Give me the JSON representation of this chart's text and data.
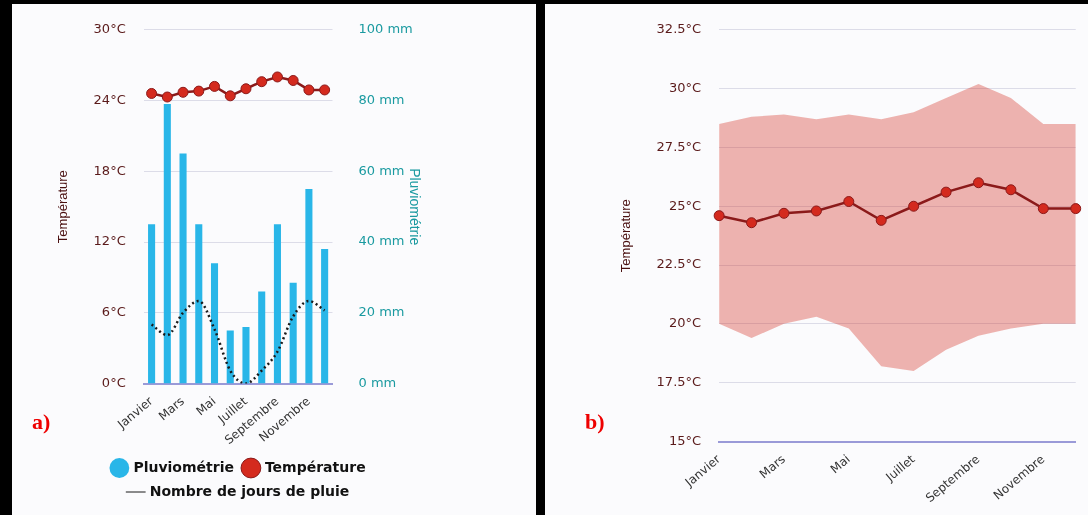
{
  "chart_data": [
    {
      "type": "bar",
      "categories": [
        "Janvier",
        null,
        "Mars",
        null,
        "Mai",
        null,
        "Juillet",
        null,
        "Septembre",
        null,
        "Novembre",
        null
      ],
      "ylabel": "Température",
      "y2label": "Pluviométrie",
      "ylim": [
        0,
        30
      ],
      "yticks": [
        {
          "value": 0,
          "label": "0°C"
        },
        {
          "value": 6,
          "label": "6°C"
        },
        {
          "value": 12,
          "label": "12°C"
        },
        {
          "value": 18,
          "label": "18°C"
        },
        {
          "value": 24,
          "label": "24°C"
        },
        {
          "value": 30,
          "label": "30°C"
        }
      ],
      "y2lim": [
        0,
        100
      ],
      "y2ticks": [
        {
          "value": 0,
          "label": "0 mm"
        },
        {
          "value": 20,
          "label": "20 mm"
        },
        {
          "value": 40,
          "label": "40 mm"
        },
        {
          "value": 60,
          "label": "60 mm"
        },
        {
          "value": 80,
          "label": "80 mm"
        },
        {
          "value": 100,
          "label": "100 mm"
        }
      ],
      "series": [
        {
          "name": "Pluviométrie",
          "type": "bar",
          "axis": "y2",
          "color": "#29b6e8",
          "values": [
            45,
            79,
            65,
            45,
            34,
            15,
            16,
            26,
            45,
            28.5,
            55,
            38
          ]
        },
        {
          "name": "Température",
          "type": "line",
          "axis": "y",
          "color": "#d42a1e",
          "marker": "circle",
          "values": [
            24.6,
            24.3,
            24.7,
            24.8,
            25.2,
            24.4,
            25.0,
            25.6,
            26.0,
            25.7,
            24.9,
            24.9
          ]
        },
        {
          "name": "Nombre de jours de pluie",
          "type": "line",
          "axis": "y",
          "color": "#1a1a1a",
          "marker": "none",
          "line_style": "dotted",
          "values": [
            5.0,
            4.1,
            6.0,
            7.0,
            4.6,
            1.1,
            0,
            1.1,
            2.7,
            5.7,
            7.0,
            6.2
          ]
        }
      ],
      "grid": "y",
      "legend": "bottom",
      "annotations": [
        "a)"
      ]
    },
    {
      "type": "line",
      "categories": [
        "Janvier",
        null,
        "Mars",
        null,
        "Mai",
        null,
        "Juillet",
        null,
        "Septembre",
        null,
        "Novembre",
        null
      ],
      "ylabel": "Température",
      "ylim": [
        15,
        32.5
      ],
      "yticks": [
        {
          "value": 15,
          "label": "15°C"
        },
        {
          "value": 17.5,
          "label": "17.5°C"
        },
        {
          "value": 20,
          "label": "20°C"
        },
        {
          "value": 22.5,
          "label": "22.5°C"
        },
        {
          "value": 25,
          "label": "25°C"
        },
        {
          "value": 27.5,
          "label": "27.5°C"
        },
        {
          "value": 30,
          "label": "30°C"
        },
        {
          "value": 32.5,
          "label": "32.5°C"
        }
      ],
      "series": [
        {
          "type": "line",
          "color": "#d42a1e",
          "marker": "circle",
          "values": [
            24.6,
            24.3,
            24.7,
            24.8,
            25.2,
            24.4,
            25.0,
            25.6,
            26.0,
            25.7,
            24.9,
            24.9
          ],
          "lower": [
            20.0,
            19.4,
            20.0,
            20.3,
            19.8,
            18.2,
            18.0,
            18.9,
            19.5,
            19.8,
            20.0,
            20.0
          ],
          "upper": [
            28.5,
            28.8,
            28.9,
            28.7,
            28.9,
            28.7,
            29.0,
            29.6,
            30.2,
            29.6,
            28.5,
            28.5
          ]
        }
      ],
      "grid": "y",
      "annotations": [
        "b)"
      ]
    }
  ]
}
